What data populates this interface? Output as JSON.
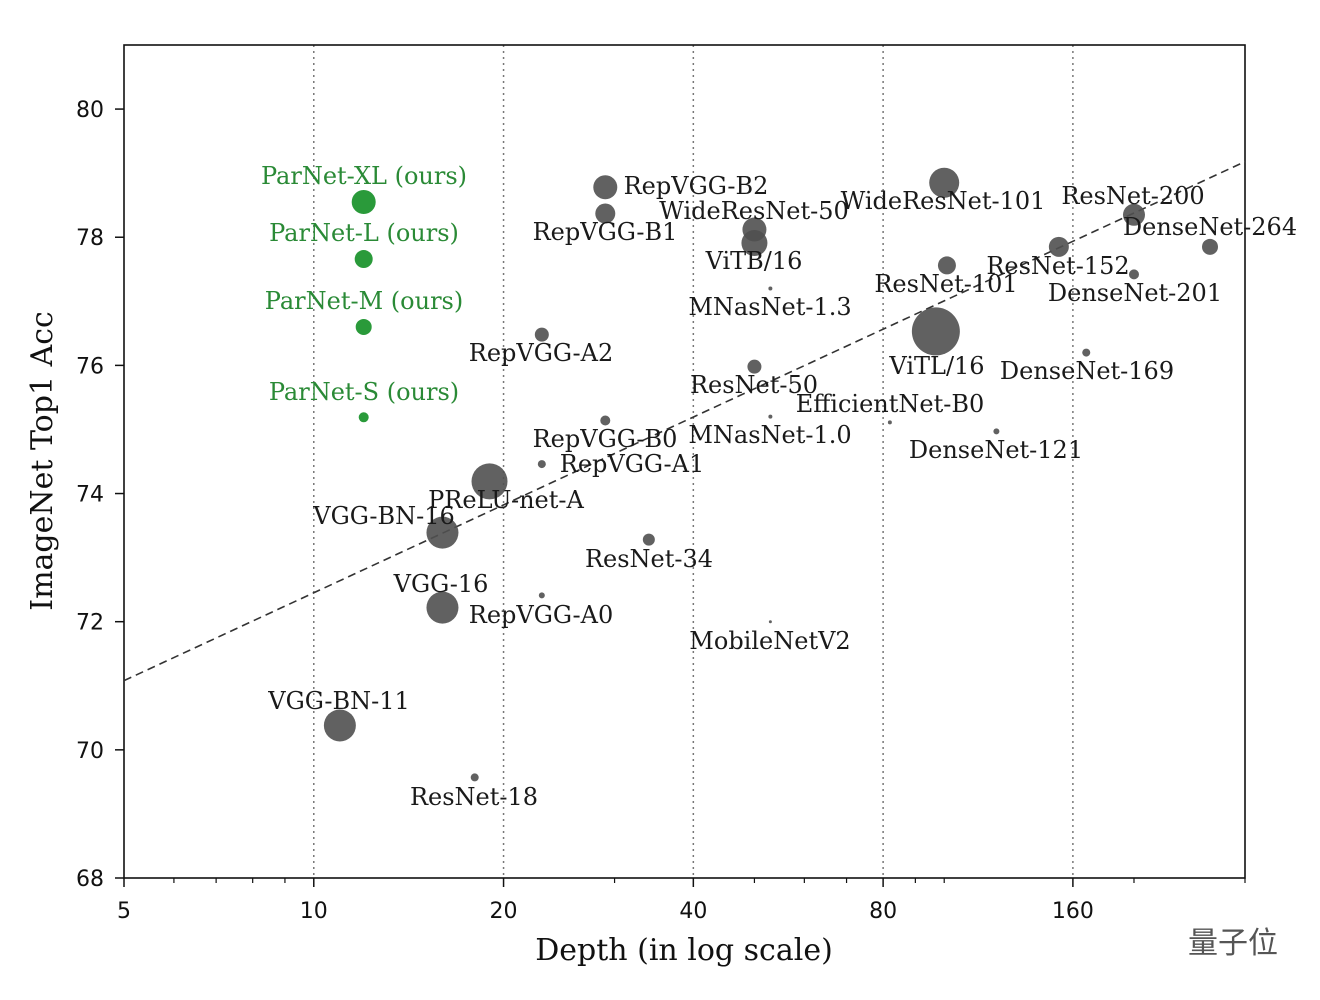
{
  "chart_data": {
    "type": "scatter",
    "title": "",
    "xlabel": "Depth (in log scale)",
    "ylabel": "ImageNet Top1 Acc",
    "xscale": "log",
    "xlim": [
      5,
      300
    ],
    "ylim": [
      68,
      81
    ],
    "xticks": [
      5,
      10,
      20,
      40,
      80,
      160
    ],
    "yticks": [
      68,
      70,
      72,
      74,
      76,
      78,
      80
    ],
    "grid": "vertical dotted at major x ticks",
    "colors": {
      "ours": "#2a9a3a",
      "others": "#505050",
      "ours_label": "#2a8a36"
    },
    "trend_line": {
      "style": "dashed",
      "points": [
        [
          5,
          71.08
        ],
        [
          300,
          79.18
        ]
      ]
    },
    "points": [
      {
        "name": "ParNet-XL (ours)",
        "depth": 12,
        "acc": 78.55,
        "size": 12,
        "ours": true
      },
      {
        "name": "ParNet-L (ours)",
        "depth": 12,
        "acc": 77.66,
        "size": 9,
        "ours": true
      },
      {
        "name": "ParNet-M (ours)",
        "depth": 12,
        "acc": 76.6,
        "size": 8,
        "ours": true
      },
      {
        "name": "ParNet-S (ours)",
        "depth": 12,
        "acc": 75.19,
        "size": 5,
        "ours": true
      },
      {
        "name": "RepVGG-B2",
        "depth": 29,
        "acc": 78.78,
        "size": 12
      },
      {
        "name": "WideResNet-50",
        "depth": 50,
        "acc": 78.12,
        "size": 12
      },
      {
        "name": "RepVGG-B1",
        "depth": 29,
        "acc": 78.37,
        "size": 10
      },
      {
        "name": "ViTB/16",
        "depth": 50,
        "acc": 77.91,
        "size": 13
      },
      {
        "name": "WideResNet-101",
        "depth": 100,
        "acc": 78.85,
        "size": 15
      },
      {
        "name": "ResNet-200",
        "depth": 200,
        "acc": 78.35,
        "size": 11
      },
      {
        "name": "DenseNet-264",
        "depth": 264,
        "acc": 77.85,
        "size": 8
      },
      {
        "name": "ResNet-152",
        "depth": 152,
        "acc": 77.85,
        "size": 10
      },
      {
        "name": "ResNet-101",
        "depth": 101,
        "acc": 77.56,
        "size": 9
      },
      {
        "name": "DenseNet-201",
        "depth": 200,
        "acc": 77.42,
        "size": 5
      },
      {
        "name": "MNasNet-1.3",
        "depth": 53,
        "acc": 77.2,
        "size": 2
      },
      {
        "name": "RepVGG-A2",
        "depth": 23,
        "acc": 76.48,
        "size": 7
      },
      {
        "name": "ViTL/16",
        "depth": 97,
        "acc": 76.53,
        "size": 24
      },
      {
        "name": "DenseNet-169",
        "depth": 168,
        "acc": 76.2,
        "size": 4
      },
      {
        "name": "ResNet-50",
        "depth": 50,
        "acc": 75.98,
        "size": 7
      },
      {
        "name": "EfficientNet-B0",
        "depth": 82,
        "acc": 75.11,
        "size": 2
      },
      {
        "name": "RepVGG-B0",
        "depth": 29,
        "acc": 75.14,
        "size": 5
      },
      {
        "name": "MNasNet-1.0",
        "depth": 53,
        "acc": 75.2,
        "size": 2
      },
      {
        "name": "DenseNet-121",
        "depth": 121,
        "acc": 74.97,
        "size": 3
      },
      {
        "name": "RepVGG-A1",
        "depth": 23,
        "acc": 74.46,
        "size": 4
      },
      {
        "name": "PReLU-net-A",
        "depth": 19,
        "acc": 74.19,
        "size": 18
      },
      {
        "name": "VGG-BN-16",
        "depth": 16,
        "acc": 73.39,
        "size": 16
      },
      {
        "name": "ResNet-34",
        "depth": 34,
        "acc": 73.28,
        "size": 6
      },
      {
        "name": "VGG-16",
        "depth": 16,
        "acc": 72.22,
        "size": 16
      },
      {
        "name": "RepVGG-A0",
        "depth": 23,
        "acc": 72.41,
        "size": 3
      },
      {
        "name": "MobileNetV2",
        "depth": 53,
        "acc": 72.0,
        "size": 1.5
      },
      {
        "name": "VGG-BN-11",
        "depth": 11,
        "acc": 70.38,
        "size": 16
      },
      {
        "name": "ResNet-18",
        "depth": 18,
        "acc": 69.57,
        "size": 4
      }
    ]
  },
  "watermark": "量子位"
}
